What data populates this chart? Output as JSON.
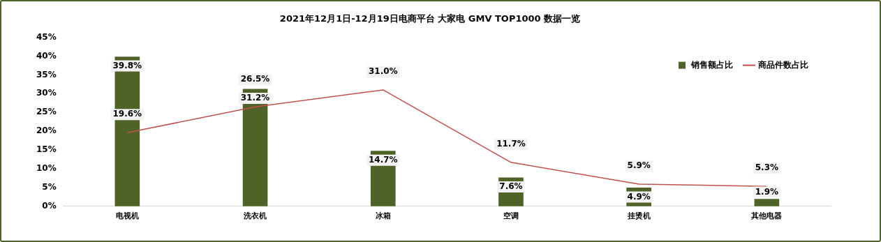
{
  "chart_data": {
    "type": "bar",
    "title": "2021年12月1日-12月19日电商平台 大家电 GMV TOP1000 数据一览",
    "categories": [
      "电视机",
      "洗衣机",
      "冰箱",
      "空调",
      "挂烫机",
      "其他电器"
    ],
    "series": [
      {
        "name": "销售额占比",
        "color": "#4f6228",
        "values": [
          39.8,
          31.2,
          14.7,
          7.6,
          4.9,
          1.9
        ],
        "value_labels": [
          "39.8%",
          "31.2%",
          "14.7%",
          "7.6%",
          "4.9%",
          "1.9%"
        ]
      },
      {
        "name": "商品件数占比",
        "type": "line",
        "color": "#c0504d",
        "values": [
          19.6,
          26.5,
          31.0,
          11.7,
          5.9,
          5.3
        ],
        "value_labels": [
          "19.6%",
          "26.5%",
          "31.0%",
          "11.7%",
          "5.9%",
          "5.3%"
        ]
      }
    ],
    "ylim": [
      0,
      45
    ],
    "yticks": [
      {
        "value": 0,
        "label": "0%"
      },
      {
        "value": 5,
        "label": "5%"
      },
      {
        "value": 10,
        "label": "10%"
      },
      {
        "value": 15,
        "label": "15%"
      },
      {
        "value": 20,
        "label": "20%"
      },
      {
        "value": 25,
        "label": "25%"
      },
      {
        "value": 30,
        "label": "30%"
      },
      {
        "value": 35,
        "label": "35%"
      },
      {
        "value": 40,
        "label": "40%"
      },
      {
        "value": 45,
        "label": "45%"
      }
    ],
    "grid": false,
    "legend": "top right",
    "marker": "none"
  }
}
